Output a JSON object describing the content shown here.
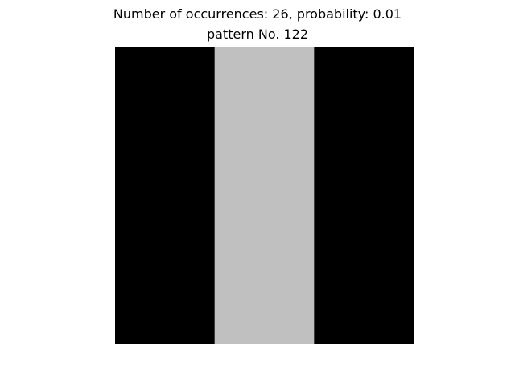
{
  "chart_data": {
    "type": "heatmap",
    "title": "Number of occurrences: 26, probability: 0.01",
    "subtitle": "pattern No. 122",
    "rows": 1,
    "cols": 3,
    "values": [
      [
        0,
        1,
        0
      ]
    ],
    "colors": {
      "0": "#000000",
      "1": "#c0c0c0"
    },
    "axes_visible": false
  }
}
